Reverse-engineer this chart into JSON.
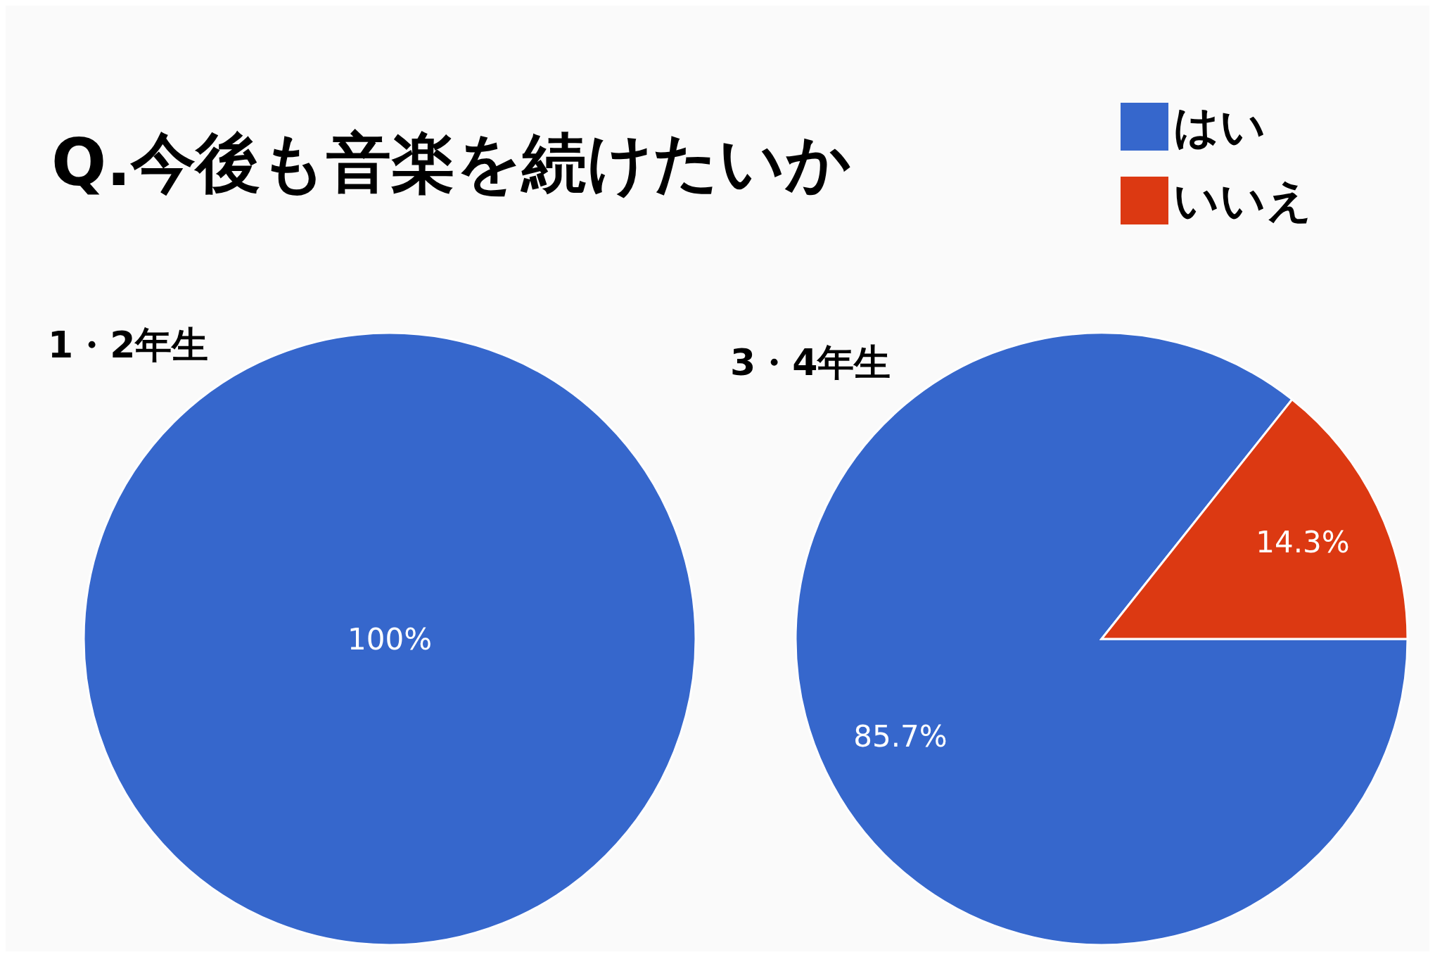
{
  "chart_data": [
    {
      "type": "pie",
      "title": "Q.今後も音楽を続けたいか",
      "subtitle": "1・2年生",
      "categories": [
        null
      ],
      "values": [
        100
      ],
      "colors": [
        "#3667cc"
      ],
      "value_labels": [
        "100%"
      ]
    },
    {
      "type": "pie",
      "subtitle": "3・4年生",
      "categories": [
        "はい",
        "いいえ"
      ],
      "values": [
        85.7,
        14.3
      ],
      "colors": [
        "#3667cc",
        "#dc3912"
      ],
      "value_labels": [
        "85.7%",
        "14.3%"
      ],
      "legend": "top right"
    }
  ]
}
